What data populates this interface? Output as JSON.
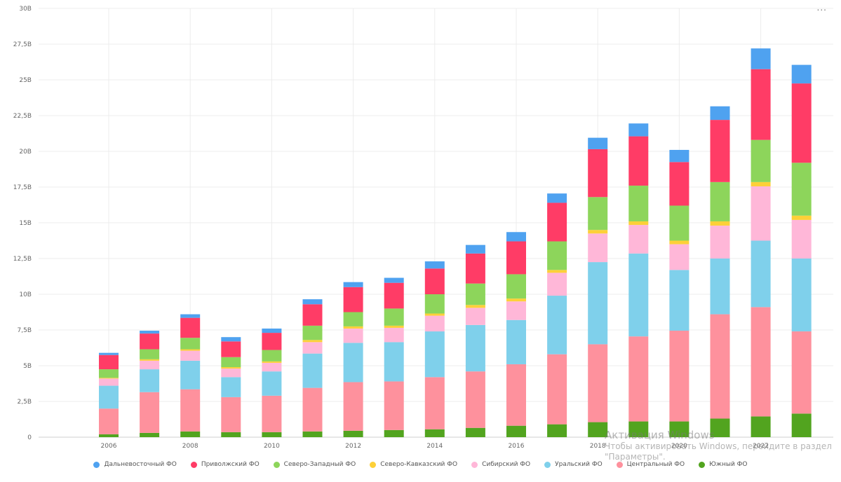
{
  "menu": {
    "label": "..."
  },
  "watermark": {
    "title": "Активация Windows",
    "subtitle_line1": "Чтобы активировать Windows, перейдите в раздел",
    "subtitle_line2": "\"Параметры\"."
  },
  "chart_data": {
    "type": "bar",
    "stacked": true,
    "x": [
      2006,
      2007,
      2008,
      2009,
      2010,
      2011,
      2012,
      2013,
      2014,
      2015,
      2016,
      2017,
      2018,
      2019,
      2020,
      2021,
      2022,
      2023
    ],
    "x_tick_labels": [
      "2006",
      "2008",
      "2010",
      "2012",
      "2014",
      "2016",
      "2018",
      "2020",
      "2022"
    ],
    "ylim": [
      0,
      30
    ],
    "y_ticks": [
      0,
      2.5,
      5,
      7.5,
      10,
      12.5,
      15,
      17.5,
      20,
      22.5,
      25,
      27.5,
      30
    ],
    "y_tick_labels": [
      "0",
      "2,5B",
      "5B",
      "7,5B",
      "10B",
      "12,5B",
      "15B",
      "17,5B",
      "20B",
      "22,5B",
      "25B",
      "27,5B",
      "30B"
    ],
    "grid": true,
    "legend_position": "bottom",
    "series": [
      {
        "name": "Южный ФО",
        "color": "#52a41f",
        "values": [
          0.2,
          0.3,
          0.4,
          0.35,
          0.35,
          0.4,
          0.45,
          0.5,
          0.55,
          0.65,
          0.8,
          0.9,
          1.05,
          1.1,
          1.1,
          1.3,
          1.45,
          1.65
        ]
      },
      {
        "name": "Центральный ФО",
        "color": "#fe919d",
        "values": [
          1.8,
          2.85,
          2.95,
          2.45,
          2.55,
          3.05,
          3.4,
          3.4,
          3.65,
          3.95,
          4.3,
          4.9,
          5.45,
          5.95,
          6.35,
          7.3,
          7.65,
          5.75
        ]
      },
      {
        "name": "Уральский ФО",
        "color": "#7fd0eb",
        "values": [
          1.6,
          1.6,
          2.0,
          1.4,
          1.7,
          2.4,
          2.75,
          2.75,
          3.2,
          3.25,
          3.1,
          4.1,
          5.75,
          5.8,
          4.25,
          3.9,
          4.65,
          5.1
        ]
      },
      {
        "name": "Сибирский ФО",
        "color": "#ffb7d8",
        "values": [
          0.5,
          0.6,
          0.7,
          0.6,
          0.6,
          0.8,
          1.0,
          1.0,
          1.1,
          1.2,
          1.3,
          1.6,
          2.0,
          2.0,
          1.8,
          2.3,
          3.8,
          2.7
        ]
      },
      {
        "name": "Северо-Кавказский ФО",
        "color": "#fdd038",
        "values": [
          0.05,
          0.1,
          0.1,
          0.1,
          0.1,
          0.15,
          0.15,
          0.15,
          0.15,
          0.2,
          0.2,
          0.2,
          0.25,
          0.25,
          0.25,
          0.3,
          0.3,
          0.3
        ]
      },
      {
        "name": "Северо-Западный ФО",
        "color": "#8dd55b",
        "values": [
          0.6,
          0.7,
          0.8,
          0.7,
          0.8,
          1.0,
          1.0,
          1.2,
          1.35,
          1.5,
          1.7,
          2.0,
          2.3,
          2.5,
          2.45,
          2.75,
          2.95,
          3.7
        ]
      },
      {
        "name": "Приволжский ФО",
        "color": "#ff3c66",
        "values": [
          1.0,
          1.1,
          1.4,
          1.1,
          1.2,
          1.5,
          1.75,
          1.8,
          1.8,
          2.1,
          2.3,
          2.7,
          3.35,
          3.45,
          3.05,
          4.35,
          4.95,
          5.55
        ]
      },
      {
        "name": "Дальневосточный ФО",
        "color": "#4fa2f0",
        "values": [
          0.15,
          0.2,
          0.25,
          0.3,
          0.3,
          0.35,
          0.35,
          0.35,
          0.5,
          0.6,
          0.65,
          0.65,
          0.8,
          0.9,
          0.85,
          0.95,
          1.45,
          1.3
        ]
      }
    ],
    "legend_order": [
      "Дальневосточный ФО",
      "Приволжский ФО",
      "Северо-Западный ФО",
      "Северо-Кавказский ФО",
      "Сибирский ФО",
      "Уральский ФО",
      "Центральный ФО",
      "Южный ФО"
    ]
  }
}
